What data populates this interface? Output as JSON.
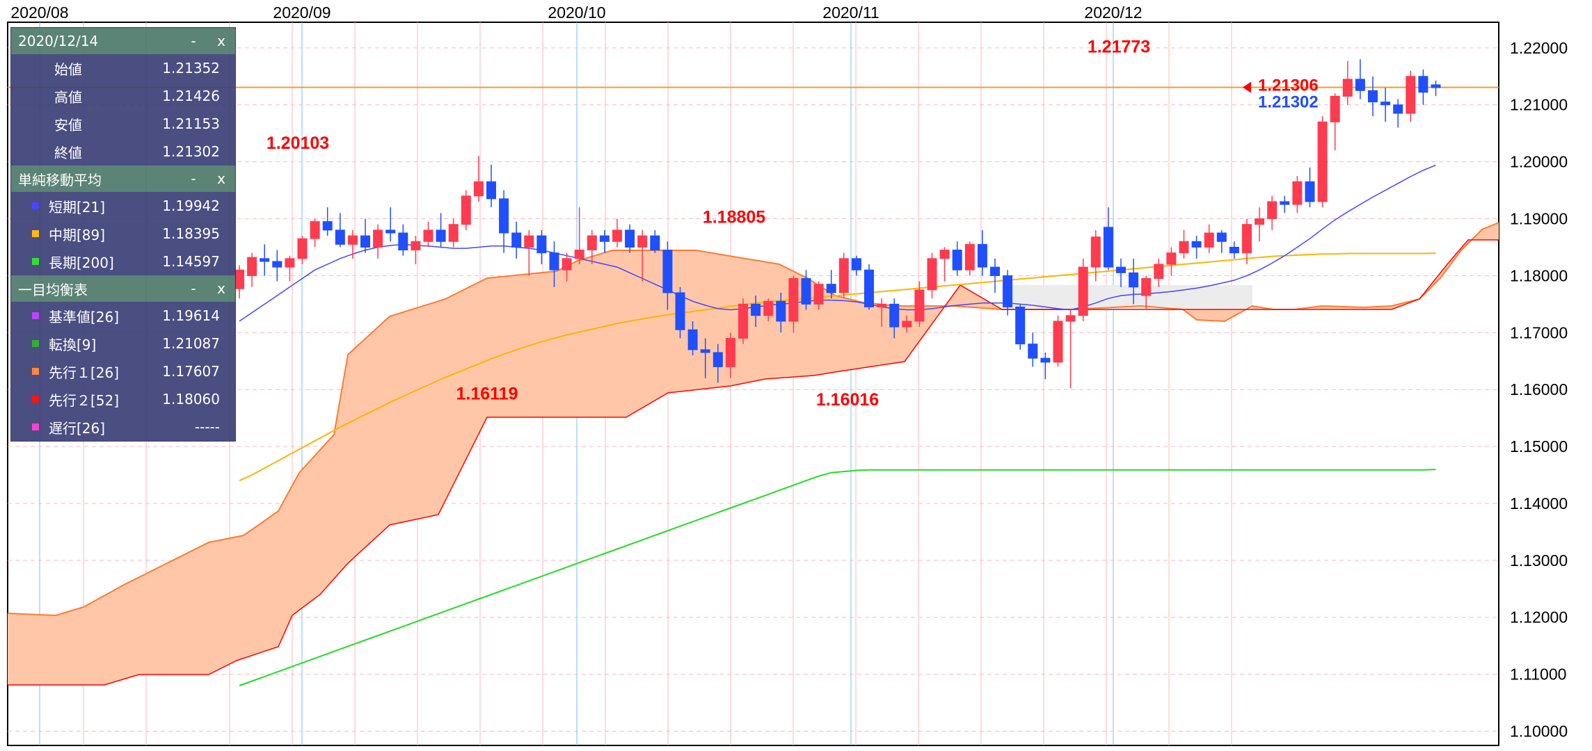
{
  "chart_data": {
    "type": "candlestick",
    "x_labels": [
      "2020/08",
      "2020/09",
      "2020/10",
      "2020/11",
      "2020/12"
    ],
    "y_ticks": [
      "1.22000",
      "1.21000",
      "1.20000",
      "1.19000",
      "1.18000",
      "1.17000",
      "1.16000",
      "1.15000",
      "1.14000",
      "1.13000",
      "1.12000",
      "1.11000",
      "1.10000"
    ],
    "ylim": [
      1.0975,
      1.2245
    ],
    "current_price": 1.21306,
    "current_line_label": "1.21306",
    "last_close_label": "1.21302",
    "annotations": [
      {
        "text": "1.20103",
        "value": 1.20103
      },
      {
        "text": "1.18805",
        "value": 1.18805
      },
      {
        "text": "1.16119",
        "value": 1.16119
      },
      {
        "text": "1.16016",
        "value": 1.16016
      },
      {
        "text": "1.21773",
        "value": 1.21773
      }
    ],
    "candles": [
      [
        1.1777,
        1.1818,
        1.176,
        1.181
      ],
      [
        1.18,
        1.184,
        1.178,
        1.1832
      ],
      [
        1.183,
        1.1855,
        1.18,
        1.1825
      ],
      [
        1.1825,
        1.1845,
        1.179,
        1.1815
      ],
      [
        1.1815,
        1.1835,
        1.179,
        1.183
      ],
      [
        1.183,
        1.187,
        1.182,
        1.1865
      ],
      [
        1.1865,
        1.19,
        1.185,
        1.1895
      ],
      [
        1.1895,
        1.192,
        1.187,
        1.188
      ],
      [
        1.188,
        1.191,
        1.185,
        1.1855
      ],
      [
        1.1855,
        1.188,
        1.183,
        1.187
      ],
      [
        1.187,
        1.19,
        1.184,
        1.185
      ],
      [
        1.185,
        1.189,
        1.183,
        1.188
      ],
      [
        1.188,
        1.192,
        1.186,
        1.1875
      ],
      [
        1.1875,
        1.189,
        1.1835,
        1.1845
      ],
      [
        1.1845,
        1.187,
        1.182,
        1.186
      ],
      [
        1.186,
        1.1895,
        1.185,
        1.188
      ],
      [
        1.188,
        1.191,
        1.185,
        1.186
      ],
      [
        1.186,
        1.19,
        1.185,
        1.189
      ],
      [
        1.189,
        1.195,
        1.188,
        1.194
      ],
      [
        1.194,
        1.201,
        1.193,
        1.1965
      ],
      [
        1.1965,
        1.1995,
        1.192,
        1.1935
      ],
      [
        1.1935,
        1.195,
        1.184,
        1.1875
      ],
      [
        1.1875,
        1.1895,
        1.183,
        1.185
      ],
      [
        1.185,
        1.188,
        1.18,
        1.187
      ],
      [
        1.187,
        1.188,
        1.182,
        1.184
      ],
      [
        1.184,
        1.186,
        1.178,
        1.181
      ],
      [
        1.181,
        1.184,
        1.179,
        1.183
      ],
      [
        1.183,
        1.192,
        1.182,
        1.1845
      ],
      [
        1.1845,
        1.188,
        1.182,
        1.187
      ],
      [
        1.187,
        1.188,
        1.184,
        1.186
      ],
      [
        1.186,
        1.19,
        1.185,
        1.188
      ],
      [
        1.188,
        1.189,
        1.184,
        1.185
      ],
      [
        1.185,
        1.188,
        1.179,
        1.187
      ],
      [
        1.187,
        1.188,
        1.184,
        1.1845
      ],
      [
        1.1845,
        1.186,
        1.174,
        1.177
      ],
      [
        1.177,
        1.178,
        1.169,
        1.1705
      ],
      [
        1.1705,
        1.172,
        1.166,
        1.167
      ],
      [
        1.167,
        1.169,
        1.162,
        1.1665
      ],
      [
        1.1665,
        1.168,
        1.1612,
        1.164
      ],
      [
        1.164,
        1.17,
        1.162,
        1.169
      ],
      [
        1.169,
        1.176,
        1.168,
        1.175
      ],
      [
        1.175,
        1.1765,
        1.171,
        1.173
      ],
      [
        1.173,
        1.176,
        1.172,
        1.1755
      ],
      [
        1.1755,
        1.177,
        1.17,
        1.172
      ],
      [
        1.172,
        1.18,
        1.17,
        1.1795
      ],
      [
        1.1795,
        1.181,
        1.174,
        1.175
      ],
      [
        1.175,
        1.179,
        1.174,
        1.1785
      ],
      [
        1.1785,
        1.181,
        1.176,
        1.177
      ],
      [
        1.177,
        1.184,
        1.176,
        1.183
      ],
      [
        1.183,
        1.1835,
        1.18,
        1.181
      ],
      [
        1.181,
        1.182,
        1.174,
        1.1745
      ],
      [
        1.1745,
        1.176,
        1.171,
        1.175
      ],
      [
        1.175,
        1.176,
        1.169,
        1.171
      ],
      [
        1.171,
        1.173,
        1.17,
        1.172
      ],
      [
        1.172,
        1.179,
        1.171,
        1.1775
      ],
      [
        1.1775,
        1.184,
        1.176,
        1.183
      ],
      [
        1.183,
        1.185,
        1.179,
        1.1845
      ],
      [
        1.1845,
        1.186,
        1.18,
        1.181
      ],
      [
        1.181,
        1.186,
        1.18,
        1.1855
      ],
      [
        1.1855,
        1.188,
        1.18,
        1.1815
      ],
      [
        1.1815,
        1.183,
        1.177,
        1.18
      ],
      [
        1.18,
        1.181,
        1.173,
        1.1745
      ],
      [
        1.1745,
        1.175,
        1.167,
        1.168
      ],
      [
        1.168,
        1.17,
        1.164,
        1.1655
      ],
      [
        1.1655,
        1.1665,
        1.1618,
        1.1648
      ],
      [
        1.1648,
        1.173,
        1.164,
        1.172
      ],
      [
        1.172,
        1.174,
        1.1602,
        1.173
      ],
      [
        1.173,
        1.183,
        1.172,
        1.1815
      ],
      [
        1.1815,
        1.188,
        1.179,
        1.1868
      ],
      [
        1.1885,
        1.192,
        1.181,
        1.1815
      ],
      [
        1.1815,
        1.183,
        1.178,
        1.1805
      ],
      [
        1.1805,
        1.183,
        1.175,
        1.178
      ],
      [
        1.1765,
        1.18,
        1.174,
        1.1795
      ],
      [
        1.1795,
        1.183,
        1.178,
        1.182
      ],
      [
        1.182,
        1.185,
        1.18,
        1.184
      ],
      [
        1.184,
        1.188,
        1.183,
        1.186
      ],
      [
        1.186,
        1.187,
        1.183,
        1.185
      ],
      [
        1.185,
        1.189,
        1.184,
        1.1875
      ],
      [
        1.1875,
        1.188,
        1.184,
        1.186
      ],
      [
        1.185,
        1.186,
        1.183,
        1.184
      ],
      [
        1.184,
        1.19,
        1.182,
        1.189
      ],
      [
        1.189,
        1.192,
        1.186,
        1.19
      ],
      [
        1.19,
        1.194,
        1.188,
        1.193
      ],
      [
        1.193,
        1.194,
        1.191,
        1.1925
      ],
      [
        1.1925,
        1.1975,
        1.191,
        1.1965
      ],
      [
        1.1965,
        1.199,
        1.192,
        1.193
      ],
      [
        1.193,
        1.208,
        1.192,
        1.207
      ],
      [
        1.207,
        1.212,
        1.202,
        1.2115
      ],
      [
        1.2115,
        1.2177,
        1.21,
        1.2145
      ],
      [
        1.2145,
        1.218,
        1.211,
        1.2125
      ],
      [
        1.2125,
        1.215,
        1.208,
        1.2105
      ],
      [
        1.2105,
        1.213,
        1.207,
        1.21
      ],
      [
        1.21,
        1.211,
        1.206,
        1.2085
      ],
      [
        1.2085,
        1.216,
        1.207,
        1.215
      ],
      [
        1.215,
        1.2162,
        1.21,
        1.2122
      ],
      [
        1.21352,
        1.21426,
        1.21153,
        1.21302
      ]
    ],
    "sma_short": [
      1.172,
      1.1735,
      1.175,
      1.1765,
      1.178,
      1.1795,
      1.181,
      1.182,
      1.183,
      1.1838,
      1.1845,
      1.185,
      1.1853,
      1.1855,
      1.1853,
      1.1852,
      1.185,
      1.1848,
      1.1848,
      1.185,
      1.1852,
      1.1852,
      1.185,
      1.1848,
      1.1845,
      1.184,
      1.1835,
      1.183,
      1.1825,
      1.182,
      1.1815,
      1.1805,
      1.1795,
      1.1785,
      1.1775,
      1.1765,
      1.1755,
      1.1748,
      1.1742,
      1.174,
      1.1742,
      1.1745,
      1.1748,
      1.175,
      1.1752,
      1.1755,
      1.1757,
      1.1757,
      1.1756,
      1.1754,
      1.175,
      1.1745,
      1.1742,
      1.174,
      1.174,
      1.1742,
      1.1745,
      1.1748,
      1.175,
      1.1752,
      1.1752,
      1.1752,
      1.175,
      1.1748,
      1.1745,
      1.1742,
      1.174,
      1.1745,
      1.1752,
      1.176,
      1.1765,
      1.1767,
      1.1768,
      1.177,
      1.1772,
      1.1775,
      1.1778,
      1.1782,
      1.1787,
      1.1792,
      1.18,
      1.181,
      1.1822,
      1.1835,
      1.185,
      1.1865,
      1.1882,
      1.1898,
      1.1912,
      1.1925,
      1.1938,
      1.195,
      1.1962,
      1.1974,
      1.1985,
      1.1994
    ],
    "sma_mid": [
      1.144,
      1.145,
      1.1462,
      1.1474,
      1.1486,
      1.1498,
      1.151,
      1.1522,
      1.1534,
      1.1545,
      1.1556,
      1.1567,
      1.1578,
      1.1588,
      1.1598,
      1.1608,
      1.1618,
      1.1627,
      1.1636,
      1.1645,
      1.1654,
      1.1662,
      1.167,
      1.1677,
      1.1684,
      1.169,
      1.1696,
      1.1701,
      1.1706,
      1.1711,
      1.1716,
      1.172,
      1.1724,
      1.1728,
      1.1731,
      1.1734,
      1.1737,
      1.174,
      1.1743,
      1.1746,
      1.1749,
      1.1752,
      1.1754,
      1.1756,
      1.1758,
      1.176,
      1.1762,
      1.1764,
      1.1766,
      1.1768,
      1.177,
      1.1772,
      1.1774,
      1.1776,
      1.1778,
      1.178,
      1.1782,
      1.1784,
      1.1786,
      1.1788,
      1.179,
      1.1792,
      1.1794,
      1.1796,
      1.1798,
      1.18,
      1.1802,
      1.1804,
      1.1806,
      1.1808,
      1.181,
      1.1812,
      1.1814,
      1.1816,
      1.1818,
      1.182,
      1.1822,
      1.1824,
      1.1826,
      1.1828,
      1.183,
      1.1832,
      1.1834,
      1.1835,
      1.1836,
      1.1837,
      1.1838,
      1.1838,
      1.1839,
      1.1839,
      1.1839,
      1.1839,
      1.1839,
      1.1839,
      1.1839,
      1.18395
    ],
    "sma_long": [
      1.108,
      1.1088,
      1.1096,
      1.1104,
      1.1112,
      1.112,
      1.1128,
      1.1136,
      1.1144,
      1.1152,
      1.116,
      1.1168,
      1.1176,
      1.1184,
      1.1192,
      1.12,
      1.1208,
      1.1216,
      1.1224,
      1.1232,
      1.124,
      1.1248,
      1.1256,
      1.1264,
      1.1272,
      1.128,
      1.1288,
      1.1296,
      1.1304,
      1.1312,
      1.132,
      1.1328,
      1.1336,
      1.1344,
      1.1352,
      1.136,
      1.1368,
      1.1376,
      1.1384,
      1.1392,
      1.14,
      1.1408,
      1.1416,
      1.1424,
      1.1432,
      1.144,
      1.1448,
      1.1454,
      1.1456,
      1.1458,
      1.1459,
      1.1459,
      1.1459,
      1.1459,
      1.1459,
      1.1459,
      1.1459,
      1.1459,
      1.1459,
      1.1459,
      1.1459,
      1.1459,
      1.1459,
      1.1459,
      1.1459,
      1.1459,
      1.1459,
      1.1459,
      1.1459,
      1.1459,
      1.1459,
      1.1459,
      1.1459,
      1.1459,
      1.1459,
      1.1459,
      1.1459,
      1.1459,
      1.1459,
      1.1459,
      1.1459,
      1.1459,
      1.1459,
      1.1459,
      1.1459,
      1.1459,
      1.1459,
      1.1459,
      1.1459,
      1.1459,
      1.1459,
      1.1459,
      1.1459,
      1.1459,
      1.1459,
      1.14597
    ],
    "panel": {
      "date": "2020/12/14",
      "btn_min": "-",
      "btn_close": "x",
      "ohlc": [
        {
          "label": "始値",
          "value": "1.21352"
        },
        {
          "label": "高値",
          "value": "1.21426"
        },
        {
          "label": "安値",
          "value": "1.21153"
        },
        {
          "label": "終値",
          "value": "1.21302"
        }
      ],
      "sma_title": "単純移動平均",
      "sma": [
        {
          "label": "短期[21]",
          "value": "1.19942",
          "color": "#3a3aff"
        },
        {
          "label": "中期[89]",
          "value": "1.18395",
          "color": "#ffb300"
        },
        {
          "label": "長期[200]",
          "value": "1.14597",
          "color": "#22dd22"
        }
      ],
      "ichimoku_title": "一目均衡表",
      "ichimoku": [
        {
          "label": "基準値[26]",
          "value": "1.19614",
          "color": "#bb33ff"
        },
        {
          "label": "転換[9]",
          "value": "1.21087",
          "color": "#22aa22"
        },
        {
          "label": "先行１[26]",
          "value": "1.17607",
          "color": "#ff8030"
        },
        {
          "label": "先行２[52]",
          "value": "1.18060",
          "color": "#ff0000"
        },
        {
          "label": "遅行[26]",
          "value": "-----",
          "color": "#ff33cc"
        }
      ]
    },
    "colors": {
      "up": "#ff3b50",
      "down": "#1f4fff",
      "kumo_bull": "#ffc7a8",
      "kumo_bear": "#ececec",
      "price_line": "#ff9a20",
      "grid_h": "#ffb6c1",
      "month_line": "#6ec6ff",
      "annotation": "#ff0000",
      "last_close": "#1f4fff"
    }
  }
}
